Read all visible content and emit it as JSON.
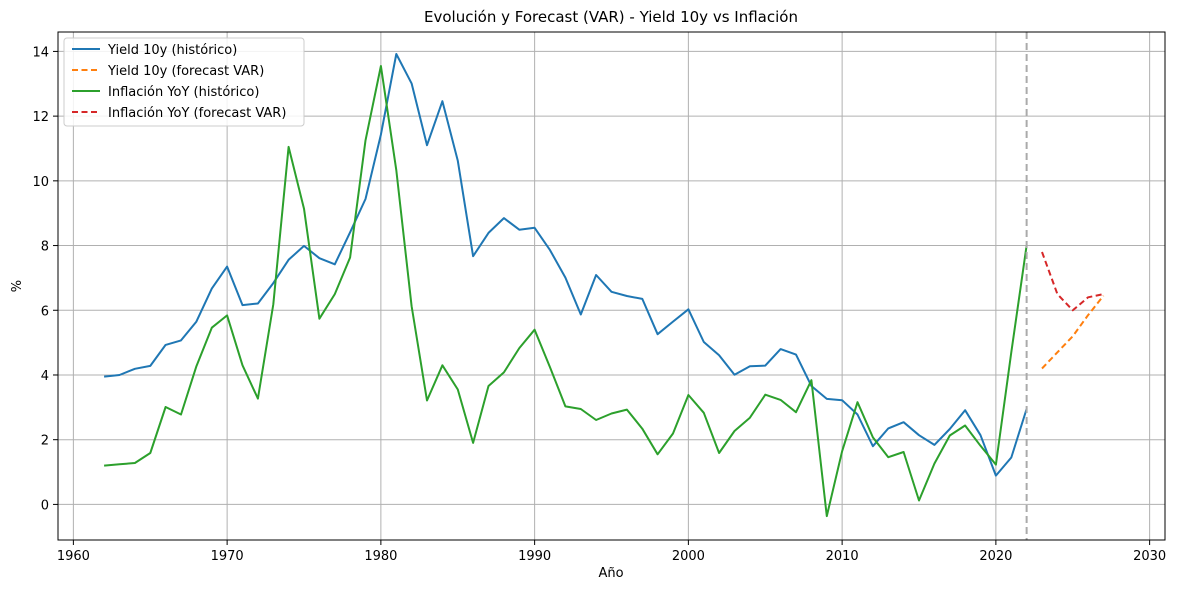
{
  "chart_data": {
    "type": "line",
    "title": "Evolución y Forecast (VAR) - Yield 10y vs Inflación",
    "xlabel": "Año",
    "ylabel": "%",
    "xlim": [
      1959,
      2031
    ],
    "ylim": [
      -1.1,
      14.6
    ],
    "xticks": [
      1960,
      1970,
      1980,
      1990,
      2000,
      2010,
      2020,
      2030
    ],
    "yticks": [
      0,
      2,
      4,
      6,
      8,
      10,
      12,
      14
    ],
    "grid": true,
    "legend_position": "top-left",
    "forecast_start_marker_x": 2022,
    "series": [
      {
        "name": "Yield 10y (histórico)",
        "color": "#1f77b4",
        "dash": "solid",
        "x": [
          1962,
          1963,
          1964,
          1965,
          1966,
          1967,
          1968,
          1969,
          1970,
          1971,
          1972,
          1973,
          1974,
          1975,
          1976,
          1977,
          1978,
          1979,
          1980,
          1981,
          1982,
          1983,
          1984,
          1985,
          1986,
          1987,
          1988,
          1989,
          1990,
          1991,
          1992,
          1993,
          1994,
          1995,
          1996,
          1997,
          1998,
          1999,
          2000,
          2001,
          2002,
          2003,
          2004,
          2005,
          2006,
          2007,
          2008,
          2009,
          2010,
          2011,
          2012,
          2013,
          2014,
          2015,
          2016,
          2017,
          2018,
          2019,
          2020,
          2021,
          2022
        ],
        "y": [
          3.95,
          4.0,
          4.19,
          4.28,
          4.93,
          5.07,
          5.65,
          6.67,
          7.35,
          6.16,
          6.21,
          6.84,
          7.56,
          7.99,
          7.61,
          7.42,
          8.41,
          9.44,
          11.43,
          13.92,
          13.01,
          11.1,
          12.46,
          10.62,
          7.67,
          8.39,
          8.85,
          8.49,
          8.55,
          7.86,
          7.01,
          5.87,
          7.09,
          6.57,
          6.44,
          6.35,
          5.26,
          5.65,
          6.03,
          5.02,
          4.61,
          4.01,
          4.27,
          4.29,
          4.8,
          4.63,
          3.66,
          3.26,
          3.22,
          2.78,
          1.8,
          2.35,
          2.54,
          2.14,
          1.84,
          2.33,
          2.91,
          2.14,
          0.89,
          1.45,
          2.95
        ]
      },
      {
        "name": "Yield 10y (forecast VAR)",
        "color": "#ff7f0e",
        "dash": "dashed",
        "x": [
          2023,
          2024,
          2025,
          2026,
          2027
        ],
        "y": [
          4.2,
          4.7,
          5.2,
          5.85,
          6.45
        ]
      },
      {
        "name": "Inflación YoY (histórico)",
        "color": "#2ca02c",
        "dash": "solid",
        "x": [
          1962,
          1963,
          1964,
          1965,
          1966,
          1967,
          1968,
          1969,
          1970,
          1971,
          1972,
          1973,
          1974,
          1975,
          1976,
          1977,
          1978,
          1979,
          1980,
          1981,
          1982,
          1983,
          1984,
          1985,
          1986,
          1987,
          1988,
          1989,
          1990,
          1991,
          1992,
          1993,
          1994,
          1995,
          1996,
          1997,
          1998,
          1999,
          2000,
          2001,
          2002,
          2003,
          2004,
          2005,
          2006,
          2007,
          2008,
          2009,
          2010,
          2011,
          2012,
          2013,
          2014,
          2015,
          2016,
          2017,
          2018,
          2019,
          2020,
          2021,
          2022
        ],
        "y": [
          1.2,
          1.24,
          1.28,
          1.59,
          3.01,
          2.78,
          4.27,
          5.46,
          5.84,
          4.3,
          3.27,
          6.18,
          11.05,
          9.14,
          5.74,
          6.5,
          7.63,
          11.25,
          13.55,
          10.33,
          6.13,
          3.21,
          4.3,
          3.55,
          1.9,
          3.66,
          4.08,
          4.83,
          5.4,
          4.24,
          3.03,
          2.95,
          2.61,
          2.81,
          2.93,
          2.34,
          1.55,
          2.19,
          3.38,
          2.83,
          1.59,
          2.27,
          2.68,
          3.39,
          3.23,
          2.85,
          3.84,
          -0.36,
          1.64,
          3.16,
          2.07,
          1.46,
          1.62,
          0.12,
          1.26,
          2.13,
          2.44,
          1.81,
          1.23,
          4.7,
          8.0
        ]
      },
      {
        "name": "Inflación YoY (forecast VAR)",
        "color": "#d62728",
        "dash": "dashed",
        "x": [
          2023,
          2024,
          2025,
          2026,
          2027
        ],
        "y": [
          7.8,
          6.5,
          6.0,
          6.4,
          6.5
        ]
      }
    ]
  }
}
